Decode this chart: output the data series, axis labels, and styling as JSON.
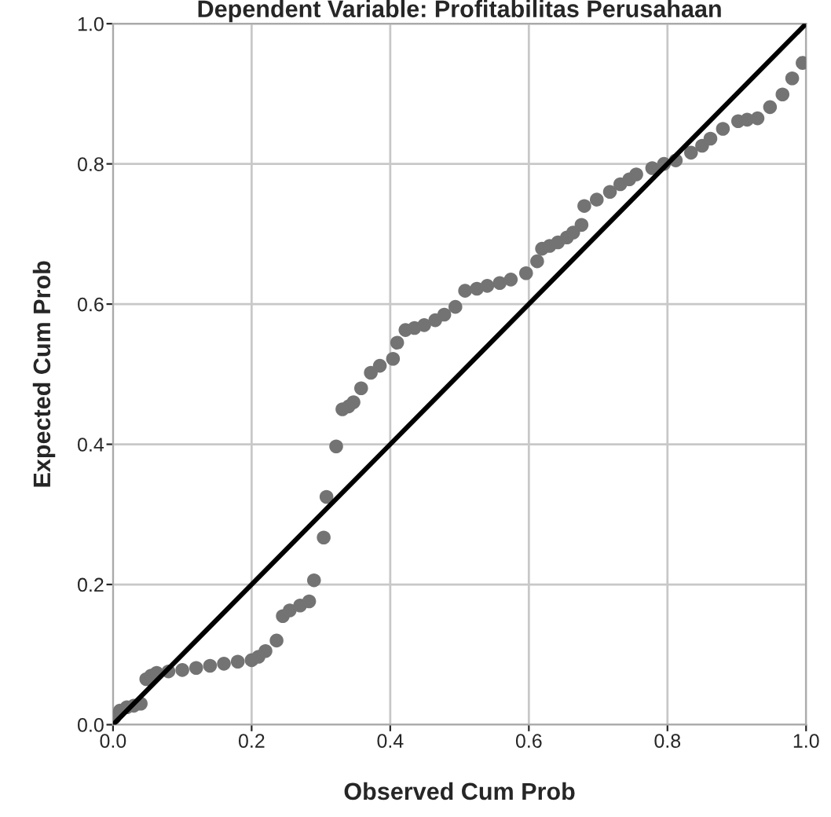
{
  "chart_data": {
    "type": "scatter",
    "title": "Dependent Variable: Profitabilitas Perusahaan",
    "xlabel": "Observed Cum Prob",
    "ylabel": "Expected Cum Prob",
    "xlim": [
      0,
      1
    ],
    "ylim": [
      0,
      1
    ],
    "xticks": [
      {
        "value": 0,
        "label": "0.0"
      },
      {
        "value": 0.2,
        "label": "0.2"
      },
      {
        "value": 0.4,
        "label": "0.4"
      },
      {
        "value": 0.6,
        "label": "0.6"
      },
      {
        "value": 0.8,
        "label": "0.8"
      },
      {
        "value": 1,
        "label": "1.0"
      }
    ],
    "yticks": [
      {
        "value": 0,
        "label": "0.0"
      },
      {
        "value": 0.2,
        "label": "0.2"
      },
      {
        "value": 0.4,
        "label": "0.4"
      },
      {
        "value": 0.6,
        "label": "0.6"
      },
      {
        "value": 0.8,
        "label": "0.8"
      },
      {
        "value": 1,
        "label": "1.0"
      }
    ],
    "grid": true,
    "marker": "circle",
    "series": [
      {
        "color": "#737373",
        "x": [
          0.002,
          0.01,
          0.02,
          0.03,
          0.04,
          0.048,
          0.055,
          0.063,
          0.08,
          0.1,
          0.12,
          0.14,
          0.16,
          0.18,
          0.2,
          0.21,
          0.22,
          0.236,
          0.245,
          0.255,
          0.27,
          0.283,
          0.29,
          0.304,
          0.308,
          0.322,
          0.331,
          0.34,
          0.347,
          0.358,
          0.372,
          0.385,
          0.404,
          0.41,
          0.422,
          0.435,
          0.449,
          0.465,
          0.478,
          0.494,
          0.508,
          0.525,
          0.54,
          0.558,
          0.574,
          0.596,
          0.612,
          0.619,
          0.63,
          0.642,
          0.655,
          0.664,
          0.676,
          0.68,
          0.698,
          0.717,
          0.732,
          0.745,
          0.755,
          0.778,
          0.795,
          0.812,
          0.834,
          0.85,
          0.862,
          0.88,
          0.902,
          0.915,
          0.93,
          0.948,
          0.966,
          0.98,
          0.995
        ],
        "values": [
          0.01,
          0.02,
          0.025,
          0.027,
          0.03,
          0.065,
          0.07,
          0.074,
          0.076,
          0.078,
          0.081,
          0.084,
          0.087,
          0.09,
          0.092,
          0.097,
          0.105,
          0.12,
          0.155,
          0.163,
          0.17,
          0.176,
          0.206,
          0.267,
          0.325,
          0.397,
          0.45,
          0.454,
          0.46,
          0.48,
          0.502,
          0.512,
          0.522,
          0.545,
          0.563,
          0.566,
          0.57,
          0.577,
          0.585,
          0.596,
          0.619,
          0.622,
          0.626,
          0.63,
          0.635,
          0.644,
          0.661,
          0.679,
          0.683,
          0.688,
          0.695,
          0.702,
          0.713,
          0.74,
          0.749,
          0.76,
          0.771,
          0.778,
          0.785,
          0.794,
          0.8,
          0.805,
          0.816,
          0.826,
          0.836,
          0.85,
          0.861,
          0.863,
          0.865,
          0.881,
          0.899,
          0.922,
          0.944
        ]
      },
      {
        "type": "line",
        "color": "#000000",
        "x": [
          0,
          1
        ],
        "values": [
          0,
          1
        ],
        "marker": "none",
        "line_style": "solid"
      }
    ]
  }
}
